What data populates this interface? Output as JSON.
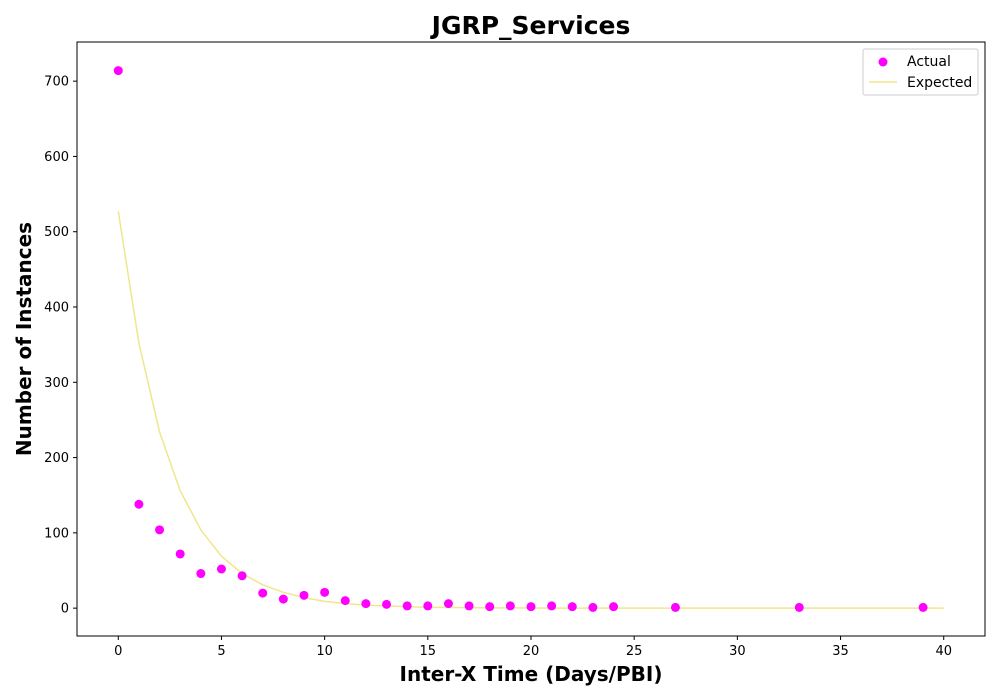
{
  "chart_data": {
    "type": "scatter",
    "title": "JGRP_Services",
    "xlabel": "Inter-X Time (Days/PBI)",
    "ylabel": "Number of Instances",
    "xlim": [
      -2,
      42
    ],
    "ylim": [
      -37,
      752
    ],
    "xticks": [
      0,
      5,
      10,
      15,
      20,
      25,
      30,
      35,
      40
    ],
    "yticks": [
      0,
      100,
      200,
      300,
      400,
      500,
      600,
      700
    ],
    "grid": false,
    "legend_position": "top-right",
    "series": [
      {
        "name": "Actual",
        "kind": "scatter",
        "color": "#ff00ff",
        "points": [
          [
            0,
            714
          ],
          [
            1,
            138
          ],
          [
            2,
            104
          ],
          [
            3,
            72
          ],
          [
            4,
            46
          ],
          [
            5,
            52
          ],
          [
            6,
            43
          ],
          [
            7,
            20
          ],
          [
            8,
            12
          ],
          [
            9,
            17
          ],
          [
            10,
            21
          ],
          [
            11,
            10
          ],
          [
            12,
            6
          ],
          [
            13,
            5
          ],
          [
            14,
            3
          ],
          [
            15,
            3
          ],
          [
            16,
            6
          ],
          [
            17,
            3
          ],
          [
            18,
            2
          ],
          [
            19,
            3
          ],
          [
            20,
            2
          ],
          [
            21,
            3
          ],
          [
            22,
            2
          ],
          [
            23,
            1
          ],
          [
            24,
            2
          ],
          [
            27,
            1
          ],
          [
            33,
            1
          ],
          [
            39,
            1
          ]
        ]
      },
      {
        "name": "Expected",
        "kind": "line",
        "color": "#f0e68c",
        "points": [
          [
            0,
            527
          ],
          [
            1,
            352
          ],
          [
            2,
            234
          ],
          [
            3,
            156
          ],
          [
            4,
            104
          ],
          [
            5,
            69
          ],
          [
            6,
            46
          ],
          [
            7,
            31
          ],
          [
            8,
            21
          ],
          [
            9,
            14
          ],
          [
            10,
            9
          ],
          [
            11,
            6
          ],
          [
            12,
            4
          ],
          [
            13,
            3
          ],
          [
            14,
            2
          ],
          [
            15,
            1
          ],
          [
            16,
            1
          ],
          [
            17,
            0.6
          ],
          [
            18,
            0.4
          ],
          [
            19,
            0.3
          ],
          [
            20,
            0.2
          ],
          [
            21,
            0.1
          ],
          [
            22,
            0.1
          ],
          [
            23,
            0.05
          ],
          [
            24,
            0.03
          ],
          [
            25,
            0.02
          ],
          [
            26,
            0.01
          ],
          [
            27,
            0
          ],
          [
            28,
            0
          ],
          [
            29,
            0
          ],
          [
            30,
            0
          ],
          [
            31,
            0
          ],
          [
            32,
            0
          ],
          [
            33,
            0
          ],
          [
            34,
            0
          ],
          [
            35,
            0
          ],
          [
            36,
            0
          ],
          [
            37,
            0
          ],
          [
            38,
            0
          ],
          [
            39,
            0
          ],
          [
            40,
            0
          ]
        ]
      }
    ]
  }
}
